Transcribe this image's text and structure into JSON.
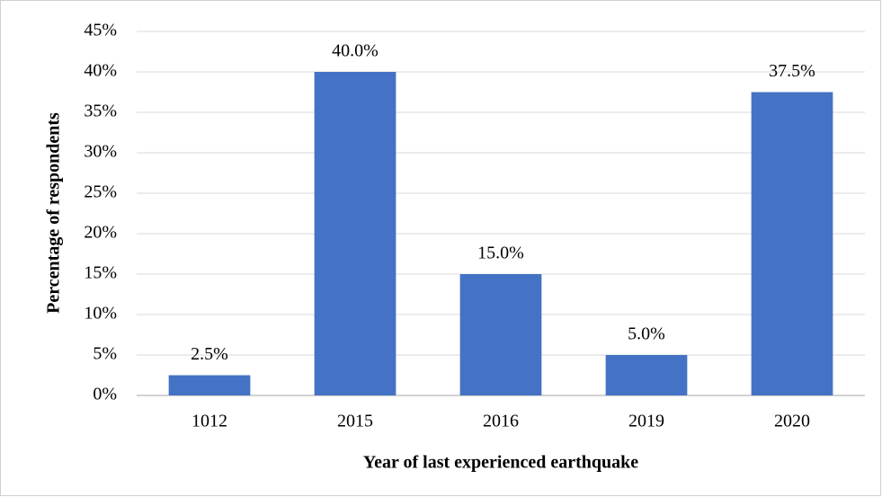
{
  "chart_data": {
    "type": "bar",
    "x_label": "Year of last experienced earthquake",
    "y_label": "Percentage of respondents",
    "categories": [
      "1012",
      "2015",
      "2016",
      "2019",
      "2020"
    ],
    "values": [
      2.5,
      40,
      15,
      5,
      37.5
    ],
    "value_labels": [
      "2.5%",
      "40.0%",
      "15.0%",
      "5.0%",
      "37.5%"
    ],
    "color": "#4472c4",
    "ylim": [
      0,
      45
    ],
    "yticks": [
      {
        "value": 0,
        "label": "0%"
      },
      {
        "value": 5,
        "label": "5%"
      },
      {
        "value": 10,
        "label": "10%"
      },
      {
        "value": 15,
        "label": "15%"
      },
      {
        "value": 20,
        "label": "20%"
      },
      {
        "value": 25,
        "label": "25%"
      },
      {
        "value": 30,
        "label": "30%"
      },
      {
        "value": 35,
        "label": "35%"
      },
      {
        "value": 40,
        "label": "40%"
      },
      {
        "value": 45,
        "label": "45%"
      }
    ],
    "grid": true
  }
}
